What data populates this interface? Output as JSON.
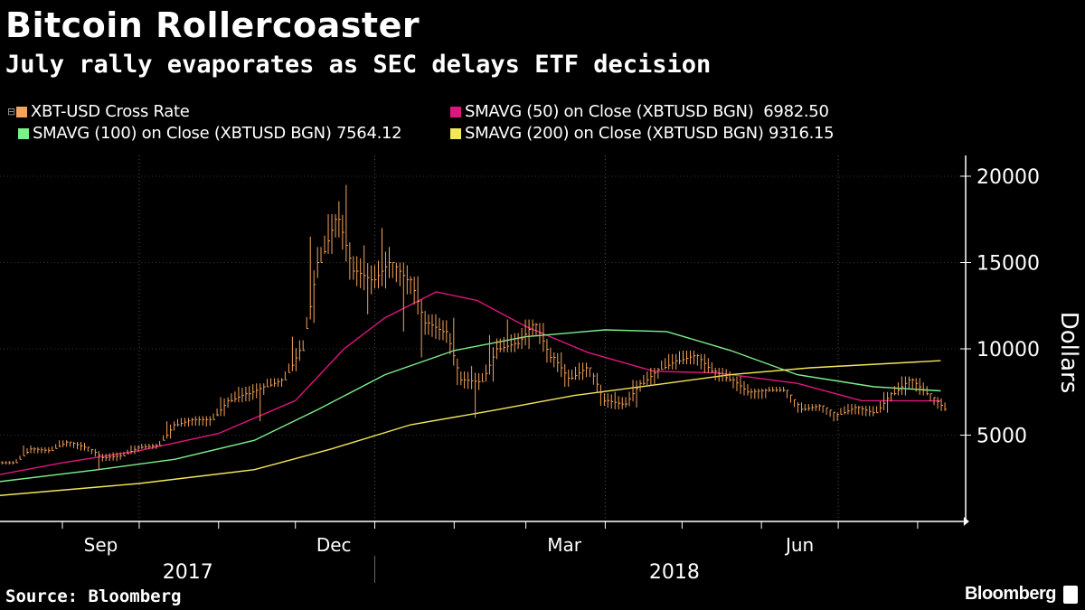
{
  "header": {
    "title": "Bitcoin Rollercoaster",
    "subtitle": "July rally evaporates as SEC delays ETF decision"
  },
  "legend": [
    {
      "label": "XBT-USD Cross Rate",
      "color": "#f5a35b"
    },
    {
      "label": "SMAVG (50) on Close (XBTUSD BGN)  6982.50",
      "color": "#e0157f"
    },
    {
      "label": "SMAVG (100) on Close (XBTUSD BGN) 7564.12",
      "color": "#7cf08a"
    },
    {
      "label": "SMAVG (200) on Close (XBTUSD BGN) 9316.15",
      "color": "#f2e85a"
    }
  ],
  "footer": {
    "source": "Source: Bloomberg",
    "brand": "Bloomberg"
  },
  "chart_data": {
    "type": "line",
    "ylabel": "Dollars",
    "ylim": [
      0,
      21200
    ],
    "yticks": [
      5000,
      10000,
      15000,
      20000
    ],
    "xlim": [
      "2017-08-07",
      "2018-08-19"
    ],
    "month_labels": [
      {
        "label": "Sep",
        "date": "2017-09-16"
      },
      {
        "label": "Dec",
        "date": "2017-12-16"
      },
      {
        "label": "Mar",
        "date": "2018-03-16"
      },
      {
        "label": "Jun",
        "date": "2018-06-16"
      }
    ],
    "year_labels": [
      {
        "label": "2017",
        "date": "2017-10-20"
      },
      {
        "label": "2018",
        "date": "2018-04-28"
      }
    ],
    "grid": "dotted quarterly vertical lines",
    "legend_position": "top",
    "series": [
      {
        "name": "XBT-USD Cross Rate",
        "style": "ohlc-bars",
        "color": "#f5a35b",
        "points": [
          [
            "2017-08-07",
            3500,
            3300,
            3400
          ],
          [
            "2017-08-14",
            4400,
            3900,
            4200
          ],
          [
            "2017-08-21",
            4300,
            3950,
            4100
          ],
          [
            "2017-08-28",
            4700,
            4300,
            4600
          ],
          [
            "2017-09-04",
            4600,
            4100,
            4300
          ],
          [
            "2017-09-11",
            4200,
            3000,
            3700
          ],
          [
            "2017-09-18",
            4000,
            3500,
            3800
          ],
          [
            "2017-09-25",
            4400,
            3900,
            4300
          ],
          [
            "2017-10-02",
            4500,
            4200,
            4400
          ],
          [
            "2017-10-09",
            5800,
            4800,
            5600
          ],
          [
            "2017-10-16",
            6000,
            5500,
            5900
          ],
          [
            "2017-10-23",
            6100,
            5500,
            5900
          ],
          [
            "2017-10-30",
            7200,
            6100,
            7000
          ],
          [
            "2017-11-06",
            7800,
            6900,
            7400
          ],
          [
            "2017-11-13",
            8000,
            5800,
            7800
          ],
          [
            "2017-11-20",
            8300,
            7800,
            8200
          ],
          [
            "2017-11-27",
            10700,
            8700,
            9900
          ],
          [
            "2017-12-04",
            16500,
            11500,
            15000
          ],
          [
            "2017-12-11",
            17800,
            15500,
            17500
          ],
          [
            "2017-12-18",
            19500,
            14000,
            14500
          ],
          [
            "2017-12-25",
            16000,
            12000,
            14000
          ],
          [
            "2018-01-01",
            17000,
            13500,
            15000
          ],
          [
            "2018-01-08",
            15000,
            11000,
            14000
          ],
          [
            "2018-01-15",
            14200,
            9500,
            11500
          ],
          [
            "2018-01-22",
            12000,
            10500,
            11000
          ],
          [
            "2018-01-29",
            11800,
            7900,
            8200
          ],
          [
            "2018-02-05",
            9000,
            6000,
            8100
          ],
          [
            "2018-02-12",
            10800,
            8100,
            10000
          ],
          [
            "2018-02-19",
            11700,
            9800,
            10300
          ],
          [
            "2018-02-26",
            11700,
            10000,
            11400
          ],
          [
            "2018-03-05",
            11500,
            9200,
            9500
          ],
          [
            "2018-03-12",
            9800,
            7800,
            8300
          ],
          [
            "2018-03-19",
            9200,
            8200,
            8900
          ],
          [
            "2018-03-26",
            8600,
            6700,
            7000
          ],
          [
            "2018-04-02",
            7500,
            6500,
            6800
          ],
          [
            "2018-04-09",
            8200,
            6600,
            8000
          ],
          [
            "2018-04-16",
            8900,
            7900,
            8800
          ],
          [
            "2018-04-23",
            9700,
            8800,
            9300
          ],
          [
            "2018-04-30",
            9900,
            9100,
            9600
          ],
          [
            "2018-05-07",
            9700,
            8600,
            8700
          ],
          [
            "2018-05-14",
            8900,
            8100,
            8200
          ],
          [
            "2018-05-21",
            8400,
            7300,
            7500
          ],
          [
            "2018-05-28",
            7700,
            7100,
            7600
          ],
          [
            "2018-06-04",
            7800,
            7500,
            7600
          ],
          [
            "2018-06-11",
            6900,
            6300,
            6500
          ],
          [
            "2018-06-18",
            6800,
            6400,
            6700
          ],
          [
            "2018-06-25",
            6300,
            5800,
            6200
          ],
          [
            "2018-07-02",
            6800,
            6200,
            6600
          ],
          [
            "2018-07-09",
            6700,
            6100,
            6300
          ],
          [
            "2018-07-16",
            7500,
            6300,
            7400
          ],
          [
            "2018-07-23",
            8400,
            7300,
            8200
          ],
          [
            "2018-07-30",
            8300,
            7300,
            7400
          ],
          [
            "2018-08-06",
            7200,
            6400,
            6500
          ]
        ]
      },
      {
        "name": "SMAVG (50) on Close (XBTUSD BGN)",
        "color": "#e0157f",
        "points": [
          [
            "2017-08-07",
            2700
          ],
          [
            "2017-09-01",
            3400
          ],
          [
            "2017-10-01",
            4100
          ],
          [
            "2017-11-01",
            5100
          ],
          [
            "2017-12-01",
            7000
          ],
          [
            "2017-12-20",
            10000
          ],
          [
            "2018-01-05",
            11800
          ],
          [
            "2018-01-25",
            13300
          ],
          [
            "2018-02-10",
            12800
          ],
          [
            "2018-03-01",
            11300
          ],
          [
            "2018-03-25",
            9800
          ],
          [
            "2018-04-20",
            8700
          ],
          [
            "2018-05-15",
            8600
          ],
          [
            "2018-06-15",
            8000
          ],
          [
            "2018-07-10",
            7000
          ],
          [
            "2018-08-10",
            6982.5
          ]
        ]
      },
      {
        "name": "SMAVG (100) on Close (XBTUSD BGN)",
        "color": "#7cf08a",
        "points": [
          [
            "2017-08-07",
            2300
          ],
          [
            "2017-09-15",
            3000
          ],
          [
            "2017-10-15",
            3600
          ],
          [
            "2017-11-15",
            4700
          ],
          [
            "2017-12-10",
            6500
          ],
          [
            "2018-01-05",
            8500
          ],
          [
            "2018-02-01",
            9900
          ],
          [
            "2018-03-01",
            10700
          ],
          [
            "2018-04-01",
            11100
          ],
          [
            "2018-04-25",
            11000
          ],
          [
            "2018-05-20",
            9900
          ],
          [
            "2018-06-15",
            8500
          ],
          [
            "2018-07-15",
            7800
          ],
          [
            "2018-08-10",
            7564.12
          ]
        ]
      },
      {
        "name": "SMAVG (200) on Close (XBTUSD BGN)",
        "color": "#f2e85a",
        "points": [
          [
            "2017-08-07",
            1500
          ],
          [
            "2017-10-01",
            2200
          ],
          [
            "2017-11-15",
            3000
          ],
          [
            "2017-12-15",
            4200
          ],
          [
            "2018-01-15",
            5600
          ],
          [
            "2018-02-15",
            6400
          ],
          [
            "2018-03-20",
            7300
          ],
          [
            "2018-04-20",
            7900
          ],
          [
            "2018-05-20",
            8500
          ],
          [
            "2018-06-20",
            8900
          ],
          [
            "2018-08-10",
            9316.15
          ]
        ]
      }
    ]
  }
}
